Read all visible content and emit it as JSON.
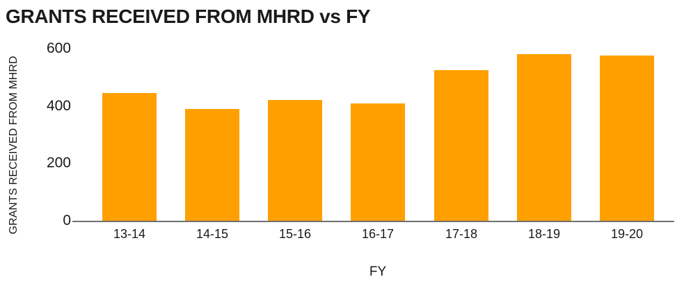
{
  "chart_data": {
    "type": "bar",
    "title": "GRANTS RECEIVED FROM MHRD vs FY",
    "xlabel": "FY",
    "ylabel": "GRANTS RECEIVED FROM MHRD",
    "categories": [
      "13-14",
      "14-15",
      "15-16",
      "16-17",
      "17-18",
      "18-19",
      "19-20"
    ],
    "values": [
      445,
      390,
      420,
      410,
      525,
      580,
      575
    ],
    "ylim": [
      0,
      600
    ],
    "yticks": [
      0,
      200,
      400,
      600
    ],
    "grid": false,
    "legend": false,
    "colors": {
      "bar": "#FFA000",
      "axis_line": "#6E6E6E",
      "text": "#1A1A1A",
      "background": "#FFFFFF"
    }
  }
}
